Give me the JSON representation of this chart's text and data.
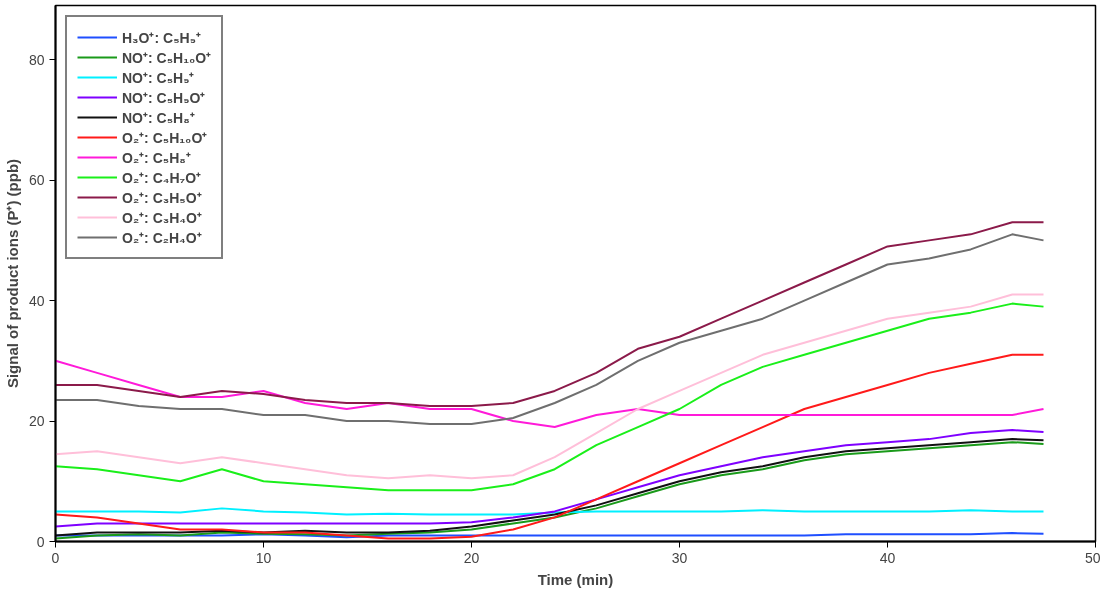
{
  "chart_data": {
    "type": "line",
    "xlabel": "Time (min)",
    "ylabel": "Signal of product ions (P⁺) (ppb)",
    "x": [
      0,
      2,
      4,
      6,
      8,
      10,
      12,
      14,
      16,
      18,
      20,
      22,
      24,
      26,
      28,
      30,
      32,
      34,
      36,
      38,
      40,
      42,
      44,
      46,
      47.5
    ],
    "xlim": [
      0,
      50
    ],
    "ylim": [
      0,
      89
    ],
    "xticks": [
      0,
      10,
      20,
      30,
      40,
      50
    ],
    "yticks": [
      0,
      20,
      40,
      60,
      80
    ],
    "grid": false,
    "legend": "top left",
    "line_style": "solid",
    "marker": "none",
    "series": [
      {
        "name": "H₃O⁺: C₅H₉⁺",
        "color": "#1f4fff",
        "values": [
          1,
          1,
          1,
          1,
          1,
          1.2,
          1,
          0.7,
          1,
          1,
          1,
          1,
          1,
          1,
          1,
          1,
          1,
          1,
          1,
          1.2,
          1.2,
          1.2,
          1.2,
          1.4,
          1.3
        ]
      },
      {
        "name": "NO⁺: C₅H₁₀O⁺",
        "color": "#1a9a1a",
        "values": [
          0.5,
          1,
          1.2,
          1,
          1.5,
          1.3,
          1.2,
          1,
          1.3,
          1.5,
          2,
          3,
          4,
          5.5,
          7.5,
          9.5,
          11,
          12,
          13.5,
          14.5,
          15,
          15.5,
          16,
          16.5,
          16.2
        ]
      },
      {
        "name": "NO⁺: C₅H₉⁺",
        "color": "#00f0ff",
        "values": [
          5,
          5,
          5,
          4.8,
          5.5,
          5,
          4.8,
          4.5,
          4.6,
          4.5,
          4.5,
          4.5,
          4.8,
          5,
          5,
          5,
          5,
          5.2,
          5,
          5,
          5,
          5,
          5.2,
          5,
          5
        ]
      },
      {
        "name": "NO⁺: C₅H₉O⁺",
        "color": "#7f00ff",
        "values": [
          2.5,
          3,
          3,
          3,
          3,
          3,
          3,
          3,
          3,
          3,
          3.2,
          4,
          5,
          7,
          9,
          11,
          12.5,
          14,
          15,
          16,
          16.5,
          17,
          18,
          18.5,
          18.2
        ]
      },
      {
        "name": "NO⁺: C₅H₈⁺",
        "color": "#111111",
        "values": [
          1,
          1.5,
          1.5,
          1.5,
          1.8,
          1.5,
          1.8,
          1.5,
          1.5,
          1.8,
          2.5,
          3.5,
          4.5,
          6,
          8,
          10,
          11.5,
          12.5,
          14,
          15,
          15.5,
          16,
          16.5,
          17,
          16.8
        ]
      },
      {
        "name": "O₂⁺: C₅H₁₀O⁺",
        "color": "#ff1a1a",
        "values": [
          4.5,
          4,
          3,
          2,
          2,
          1.5,
          1.5,
          1,
          0.5,
          0.5,
          0.8,
          2,
          4,
          7,
          10,
          13,
          16,
          19,
          22,
          24,
          26,
          28,
          29.5,
          31,
          31
        ]
      },
      {
        "name": "O₂⁺: C₅H₈⁺",
        "color": "#ff1ad9",
        "values": [
          30,
          28,
          26,
          24,
          24,
          25,
          23,
          22,
          23,
          22,
          22,
          20,
          19,
          21,
          22,
          21,
          21,
          21,
          21,
          21,
          21,
          21,
          21,
          21,
          22
        ]
      },
      {
        "name": "O₂⁺: C₄H₇O⁺",
        "color": "#1aef1a",
        "values": [
          12.5,
          12,
          11,
          10,
          12,
          10,
          9.5,
          9,
          8.5,
          8.5,
          8.5,
          9.5,
          12,
          16,
          19,
          22,
          26,
          29,
          31,
          33,
          35,
          37,
          38,
          39.5,
          39
        ]
      },
      {
        "name": "O₂⁺: C₃H₅O⁺",
        "color": "#8b1a4a",
        "values": [
          26,
          26,
          25,
          24,
          25,
          24.5,
          23.5,
          23,
          23,
          22.5,
          22.5,
          23,
          25,
          28,
          32,
          34,
          37,
          40,
          43,
          46,
          49,
          50,
          51,
          53,
          53
        ]
      },
      {
        "name": "O₂⁺: C₃H₄O⁺",
        "color": "#ffbfd9",
        "values": [
          14.5,
          15,
          14,
          13,
          14,
          13,
          12,
          11,
          10.5,
          11,
          10.5,
          11,
          14,
          18,
          22,
          25,
          28,
          31,
          33,
          35,
          37,
          38,
          39,
          41,
          41
        ]
      },
      {
        "name": "O₂⁺: C₂H₄O⁺",
        "color": "#6f6f6f",
        "values": [
          23.5,
          23.5,
          22.5,
          22,
          22,
          21,
          21,
          20,
          20,
          19.5,
          19.5,
          20.5,
          23,
          26,
          30,
          33,
          35,
          37,
          40,
          43,
          46,
          47,
          48.5,
          51,
          50
        ]
      }
    ]
  }
}
